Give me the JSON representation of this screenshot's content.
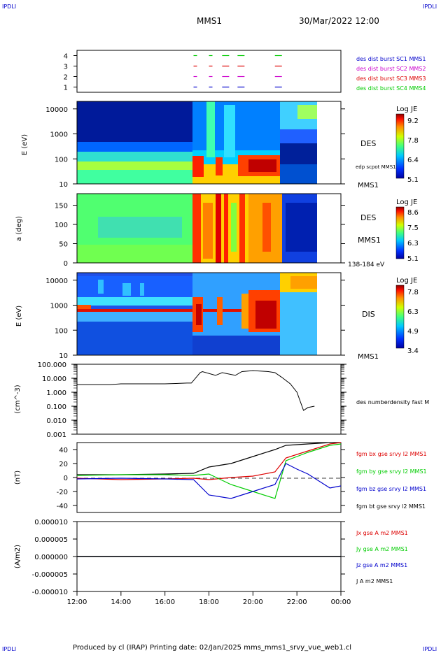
{
  "corners": {
    "tl": "IPDLI",
    "tr": "IPDLI",
    "bl": "IPDLI",
    "br": "IPDLI"
  },
  "header": {
    "mission": "MMS1",
    "datetime": "30/Mar/2022 12:00"
  },
  "footer": {
    "text": "Produced by cl (IRAP)   Printing date: 02/Jan/2025   mms_mms1_srvy_vue_web1.cl"
  },
  "time_axis": {
    "labels": [
      "12:00",
      "14:00",
      "16:00",
      "18:00",
      "20:00",
      "22:00",
      "00:00"
    ]
  },
  "colors": {
    "blue": "#0000cc",
    "magenta": "#cc00cc",
    "red": "#dd0000",
    "green": "#00cc00",
    "black": "#000000"
  },
  "panels": {
    "burst": {
      "yticks": [
        "4",
        "3",
        "2",
        "1"
      ],
      "legend": [
        {
          "text": "des dist burst SC1 MMS1",
          "color": "#0000cc"
        },
        {
          "text": "des dist burst SC2 MMS2",
          "color": "#cc00cc"
        },
        {
          "text": "des dist burst SC3 MMS3",
          "color": "#dd0000"
        },
        {
          "text": "des dist burst SC4 MMS4",
          "color": "#00cc00"
        }
      ]
    },
    "des_energy": {
      "ylabel": "E (eV)",
      "yticks": [
        "10000",
        "1000",
        "100",
        "10"
      ],
      "label_right": "DES",
      "label_right2": "edp scpot MMS1",
      "label_bottom": "MMS1",
      "colorbar": {
        "title": "Log JE",
        "ticks": [
          "9.2",
          "7.8",
          "6.4",
          "5.1"
        ]
      }
    },
    "des_pitch": {
      "ylabel": "a (deg)",
      "yticks": [
        "150",
        "100",
        "50",
        "0"
      ],
      "label_right": "DES",
      "label_right2": "MMS1",
      "label_bottom": "138-184 eV",
      "colorbar": {
        "title": "Log JE",
        "ticks": [
          "8.6",
          "7.5",
          "6.3",
          "5.1"
        ]
      }
    },
    "dis_energy": {
      "ylabel": "E (eV)",
      "yticks": [
        "10000",
        "1000",
        "100",
        "10"
      ],
      "label_right": "DIS",
      "label_bottom": "MMS1",
      "colorbar": {
        "title": "Log JE",
        "ticks": [
          "7.8",
          "6.3",
          "4.9",
          "3.4"
        ]
      }
    },
    "density": {
      "ylabel": "(cm^-3)",
      "yticks": [
        "100.000",
        "10.000",
        "1.000",
        "0.100",
        "0.010",
        "0.001"
      ],
      "legend": "des numberdensity fast M"
    },
    "bfield": {
      "ylabel": "(nT)",
      "yticks": [
        "40",
        "20",
        "0",
        "-20",
        "-40"
      ],
      "legend": [
        {
          "text": "fgm bx gse srvy l2 MMS1",
          "color": "#dd0000"
        },
        {
          "text": "fgm by gse srvy l2 MMS1",
          "color": "#00cc00"
        },
        {
          "text": "fgm bz gse srvy l2 MMS1",
          "color": "#0000cc"
        },
        {
          "text": "fgm bt gse srvy l2 MMS1",
          "color": "#000000"
        }
      ]
    },
    "current": {
      "ylabel": "(A/m2)",
      "yticks": [
        "0.000010",
        "0.000005",
        "0.000000",
        "-0.000005",
        "-0.000010"
      ],
      "legend": [
        {
          "text": "Jx gse A m2 MMS1",
          "color": "#dd0000"
        },
        {
          "text": "Jy gse A m2 MMS1",
          "color": "#00cc00"
        },
        {
          "text": "Jz gse A m2 MMS1",
          "color": "#0000cc"
        },
        {
          "text": "J A m2 MMS1",
          "color": "#000000"
        }
      ]
    }
  },
  "chart_data": [
    {
      "type": "scatter",
      "ylim": [
        0.5,
        4.5
      ],
      "series": [
        {
          "name": "des dist burst SC1 MMS1",
          "y": 1,
          "x_hours": [
            17.3,
            18.0,
            18.6,
            19.3,
            21.0
          ]
        },
        {
          "name": "des dist burst SC2 MMS2",
          "y": 2,
          "x_hours": [
            17.3,
            18.0,
            18.6,
            19.3,
            21.0
          ]
        },
        {
          "name": "des dist burst SC3 MMS3",
          "y": 3,
          "x_hours": [
            17.3,
            18.0,
            18.6,
            19.3,
            21.0
          ]
        },
        {
          "name": "des dist burst SC4 MMS4",
          "y": 4,
          "x_hours": [
            17.3,
            18.0,
            18.6,
            19.3,
            21.0
          ]
        }
      ]
    },
    {
      "type": "heatmap",
      "yscale": "log",
      "ylim": [
        10,
        20000
      ],
      "colorbar_range": [
        5.1,
        9.2
      ]
    },
    {
      "type": "heatmap",
      "ylim": [
        0,
        180
      ],
      "colorbar_range": [
        5.1,
        8.6
      ]
    },
    {
      "type": "heatmap",
      "yscale": "log",
      "ylim": [
        10,
        20000
      ],
      "colorbar_range": [
        3.4,
        7.8
      ]
    },
    {
      "type": "line",
      "yscale": "log",
      "ylim": [
        0.001,
        100
      ],
      "x_hours": [
        12.0,
        13.5,
        14.0,
        16.0,
        17.0,
        17.2,
        17.6,
        17.7,
        18.3,
        18.6,
        19.2,
        19.5,
        20.0,
        20.7,
        21.0,
        21.3,
        21.7,
        22.0,
        22.3,
        22.5,
        22.8
      ],
      "values": [
        3.5,
        3.5,
        4.0,
        4.0,
        4.5,
        4.5,
        25,
        30,
        16,
        25,
        16,
        30,
        35,
        30,
        25,
        12,
        4,
        1,
        0.05,
        0.08,
        0.1
      ]
    },
    {
      "type": "line",
      "ylim": [
        -50,
        50
      ],
      "x_hours": [
        12.0,
        14.0,
        16.0,
        17.3,
        18.0,
        19.0,
        20.0,
        21.0,
        21.5,
        22.0,
        22.5,
        23.5,
        24.0
      ],
      "series": [
        {
          "name": "fgm bx gse srvy l2 MMS1",
          "values": [
            -1,
            -3,
            -2,
            -1,
            -3,
            0,
            2,
            8,
            28,
            33,
            38,
            48,
            50
          ]
        },
        {
          "name": "fgm by gse srvy l2 MMS1",
          "values": [
            3,
            4,
            4,
            3,
            5,
            -10,
            -20,
            -30,
            24,
            30,
            36,
            46,
            48
          ]
        },
        {
          "name": "fgm bz gse srvy l2 MMS1",
          "values": [
            -2,
            -1,
            -2,
            -3,
            -25,
            -30,
            -20,
            -10,
            20,
            12,
            5,
            -15,
            -12
          ]
        },
        {
          "name": "fgm bt gse srvy l2 MMS1",
          "values": [
            4,
            4,
            5,
            6,
            15,
            20,
            30,
            40,
            46,
            47,
            48,
            50,
            50
          ]
        }
      ]
    },
    {
      "type": "line",
      "ylim": [
        -1e-05,
        1e-05
      ],
      "x_hours": [
        12,
        14,
        16,
        17.3,
        18.5,
        19.5,
        20.5,
        21.5,
        24
      ],
      "series": [
        {
          "name": "Jx gse A m2 MMS1",
          "values": [
            0,
            0,
            0,
            0,
            0,
            0,
            0,
            0,
            0
          ]
        },
        {
          "name": "Jy gse A m2 MMS1",
          "values": [
            0,
            0,
            0,
            0,
            0,
            0,
            0,
            0,
            0
          ]
        },
        {
          "name": "Jz gse A m2 MMS1",
          "values": [
            0,
            0,
            0,
            0,
            0,
            0,
            0,
            0,
            0
          ]
        },
        {
          "name": "J A m2 MMS1",
          "values": [
            0,
            0,
            0,
            0,
            0,
            0,
            0,
            0,
            0
          ]
        }
      ]
    }
  ]
}
